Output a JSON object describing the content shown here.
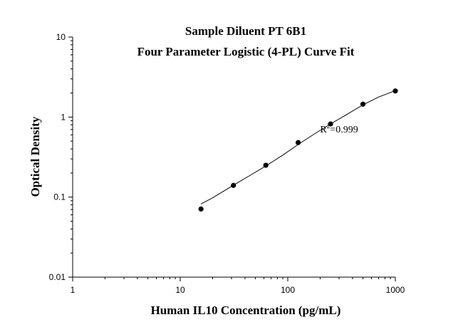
{
  "chart_data": {
    "type": "scatter",
    "title": [
      "Sample Diluent PT 6B1",
      "Four Parameter Logistic (4-PL) Curve Fit"
    ],
    "xlabel": "Human IL10 Concentration (pg/mL)",
    "ylabel": "Optical Density",
    "xscale": "log",
    "yscale": "log",
    "xlim": [
      1,
      1000
    ],
    "ylim": [
      0.01,
      10
    ],
    "xticks": [
      {
        "value": 1,
        "label": "1"
      },
      {
        "value": 10,
        "label": "10"
      },
      {
        "value": 100,
        "label": "100"
      },
      {
        "value": 1000,
        "label": "1000"
      }
    ],
    "yticks": [
      {
        "value": 0.01,
        "label": "0.01"
      },
      {
        "value": 0.1,
        "label": "0.1"
      },
      {
        "value": 1,
        "label": "1"
      },
      {
        "value": 10,
        "label": "10"
      }
    ],
    "grid": false,
    "series": [
      {
        "points": [
          {
            "x": 15.6,
            "y": 0.071
          },
          {
            "x": 31.25,
            "y": 0.14
          },
          {
            "x": 62.5,
            "y": 0.25
          },
          {
            "x": 125,
            "y": 0.48
          },
          {
            "x": 250,
            "y": 0.82
          },
          {
            "x": 500,
            "y": 1.45
          },
          {
            "x": 1000,
            "y": 2.12
          }
        ]
      }
    ],
    "fit_curve": {
      "type": "4PL",
      "points": [
        {
          "x": 15.6,
          "y": 0.082
        },
        {
          "x": 20,
          "y": 0.098
        },
        {
          "x": 31.25,
          "y": 0.141
        },
        {
          "x": 45,
          "y": 0.188
        },
        {
          "x": 62.5,
          "y": 0.245
        },
        {
          "x": 90,
          "y": 0.335
        },
        {
          "x": 125,
          "y": 0.455
        },
        {
          "x": 180,
          "y": 0.625
        },
        {
          "x": 250,
          "y": 0.82
        },
        {
          "x": 350,
          "y": 1.07
        },
        {
          "x": 500,
          "y": 1.42
        },
        {
          "x": 700,
          "y": 1.78
        },
        {
          "x": 1000,
          "y": 2.14
        }
      ]
    },
    "annotation": {
      "base": "R",
      "sup": "2",
      "rest": "=0.999",
      "x": 200,
      "y": 0.64
    }
  }
}
